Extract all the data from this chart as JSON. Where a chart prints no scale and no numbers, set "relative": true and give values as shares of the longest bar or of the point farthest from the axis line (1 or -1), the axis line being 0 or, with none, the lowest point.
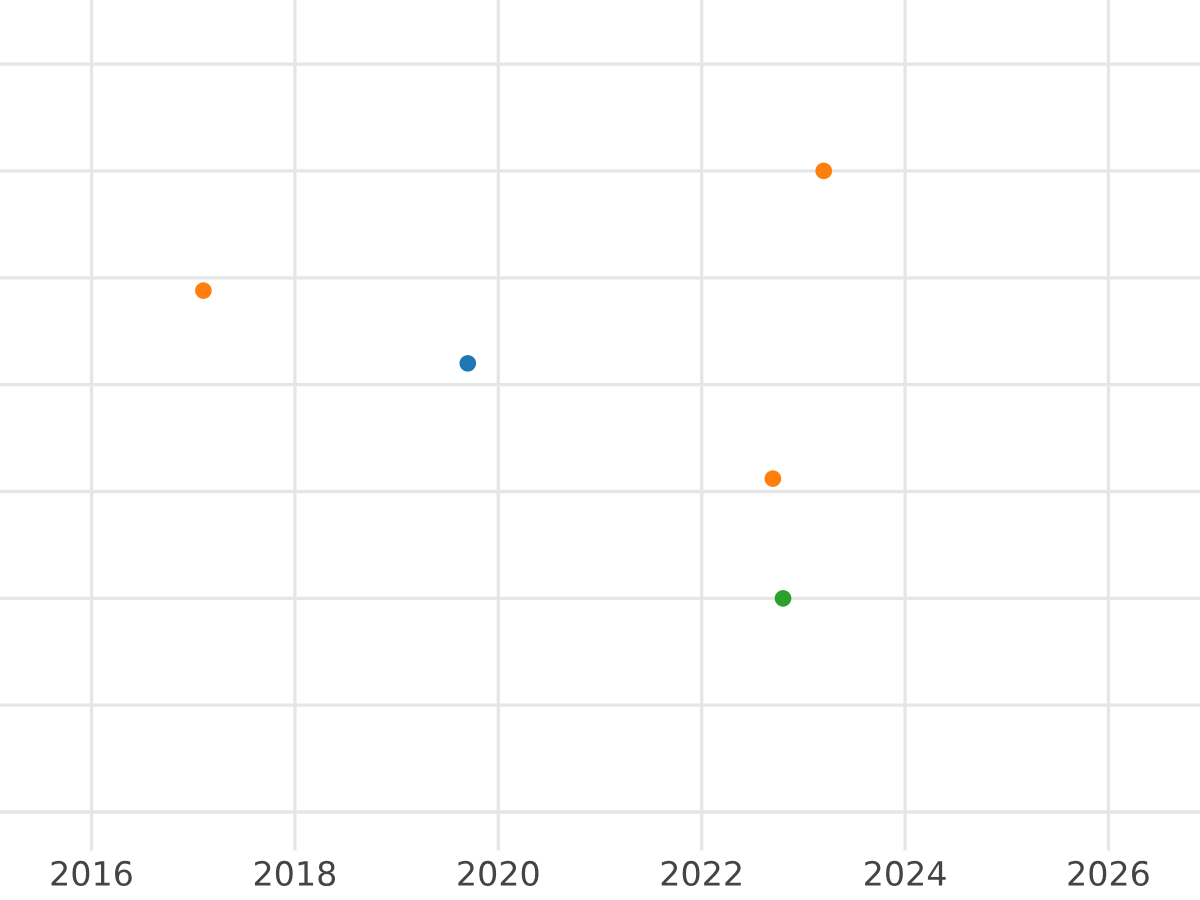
{
  "chart_data": {
    "type": "scatter",
    "relative": true,
    "x": [
      2019.7,
      2017.1,
      2023.2,
      2022.7,
      2022.8
    ],
    "values": [
      0.55,
      0.72,
      1,
      0.28,
      0
    ],
    "colors": [
      "#1f77b4",
      "#ff7f0e",
      "#ff7f0e",
      "#ff7f0e",
      "#2ca02c"
    ],
    "xlim": [
      2015.1,
      2026.9
    ],
    "xticks": [
      2016,
      2018,
      2020,
      2022,
      2024,
      2026
    ],
    "grid": true,
    "marker": "circle",
    "tick_labels": "x"
  }
}
